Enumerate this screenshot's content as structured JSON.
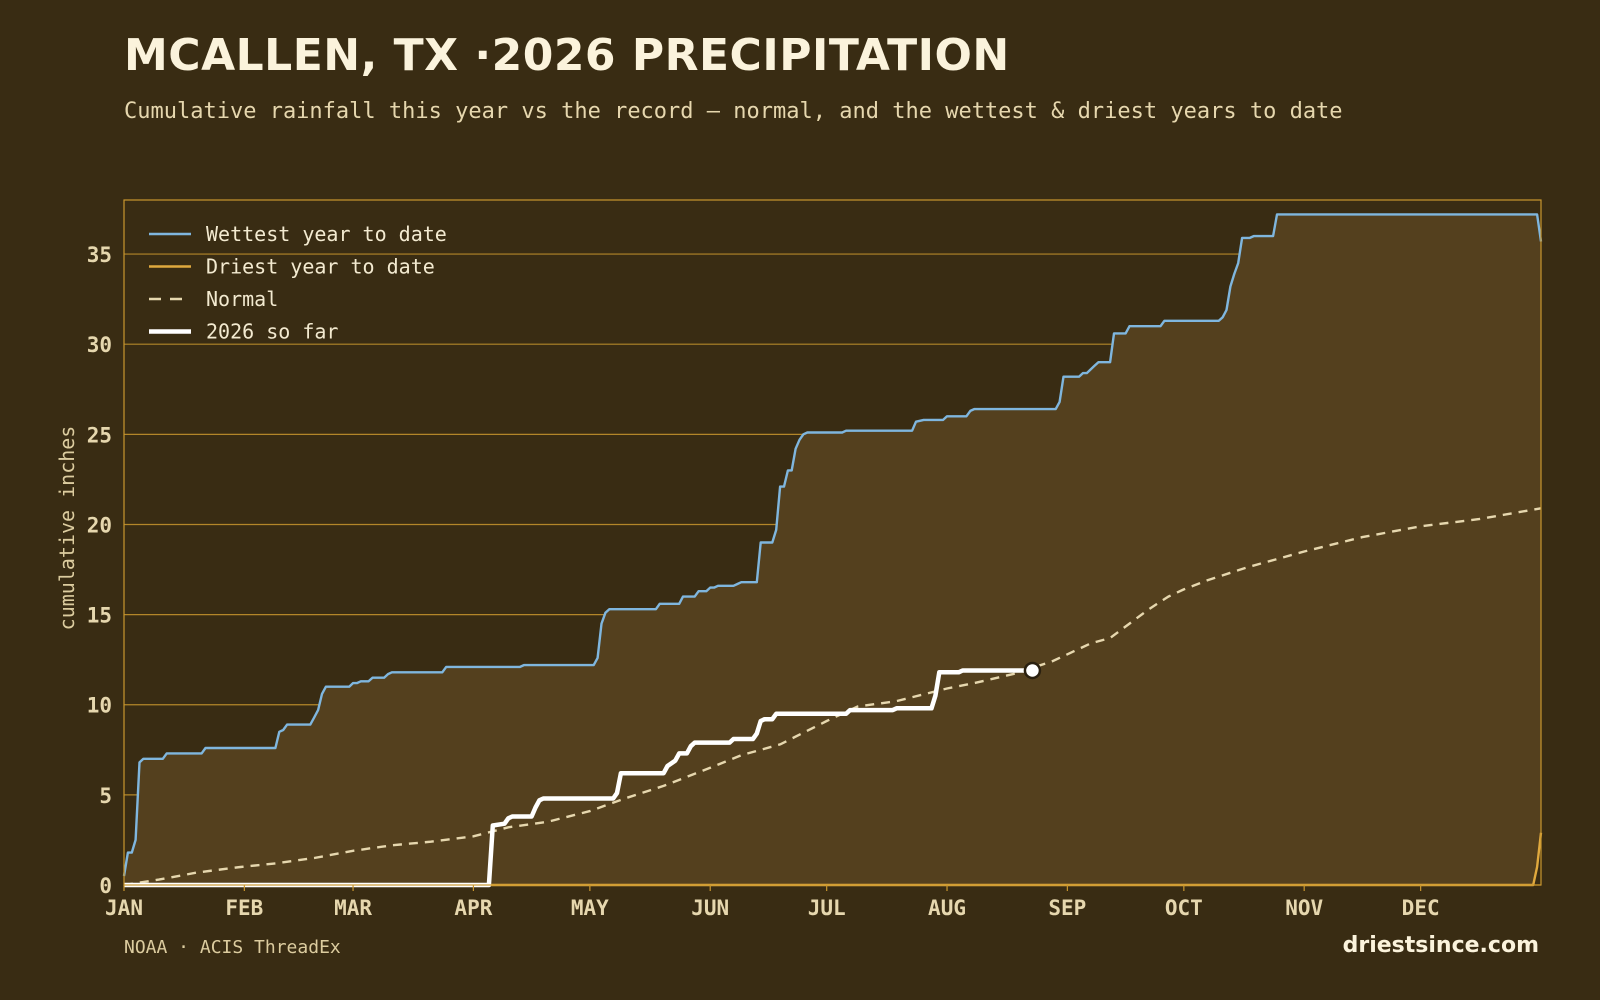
{
  "header": {
    "title": "MCALLEN, TX ·2026 PRECIPITATION",
    "subtitle": "Cumulative rainfall this year vs the record — normal, and the wettest & driest years to date"
  },
  "footer": {
    "source": "NOAA · ACIS ThreadEx",
    "brand": "driestsince.com"
  },
  "colors": {
    "background": "#392c13",
    "fill": "#54401e",
    "grid": "#c9962e",
    "wettest": "#7fb6de",
    "driest": "#e0a93e",
    "normal": "#e6d7ae",
    "current": "#ffffff"
  },
  "chart_data": {
    "type": "line",
    "xlabel": "",
    "ylabel": "cumulative inches",
    "ylim": [
      0,
      38
    ],
    "yticks": [
      0,
      5,
      10,
      15,
      20,
      25,
      30,
      35
    ],
    "xlim": [
      1,
      366
    ],
    "month_labels": [
      "JAN",
      "FEB",
      "MAR",
      "APR",
      "MAY",
      "JUN",
      "JUL",
      "AUG",
      "SEP",
      "OCT",
      "NOV",
      "DEC"
    ],
    "month_days": [
      1,
      32,
      60,
      91,
      121,
      152,
      182,
      213,
      244,
      274,
      305,
      335
    ],
    "grid": "horizontal",
    "legend": "top-left",
    "series": [
      {
        "name": "Wettest year to date",
        "style": "solid",
        "points": [
          [
            1,
            0.5
          ],
          [
            2,
            1.8
          ],
          [
            3,
            1.8
          ],
          [
            4,
            2.5
          ],
          [
            5,
            6.8
          ],
          [
            6,
            7.0
          ],
          [
            11,
            7.0
          ],
          [
            12,
            7.3
          ],
          [
            21,
            7.3
          ],
          [
            22,
            7.6
          ],
          [
            40,
            7.6
          ],
          [
            41,
            8.5
          ],
          [
            42,
            8.6
          ],
          [
            43,
            8.9
          ],
          [
            49,
            8.9
          ],
          [
            50,
            9.3
          ],
          [
            51,
            9.7
          ],
          [
            52,
            10.6
          ],
          [
            53,
            11.0
          ],
          [
            59,
            11.0
          ],
          [
            60,
            11.2
          ],
          [
            61,
            11.2
          ],
          [
            62,
            11.3
          ],
          [
            64,
            11.3
          ],
          [
            65,
            11.5
          ],
          [
            68,
            11.5
          ],
          [
            69,
            11.7
          ],
          [
            70,
            11.8
          ],
          [
            83,
            11.8
          ],
          [
            84,
            12.1
          ],
          [
            103,
            12.1
          ],
          [
            104,
            12.2
          ],
          [
            122,
            12.2
          ],
          [
            123,
            12.6
          ],
          [
            124,
            14.5
          ],
          [
            125,
            15.1
          ],
          [
            126,
            15.3
          ],
          [
            138,
            15.3
          ],
          [
            139,
            15.6
          ],
          [
            144,
            15.6
          ],
          [
            145,
            16.0
          ],
          [
            148,
            16.0
          ],
          [
            149,
            16.3
          ],
          [
            151,
            16.3
          ],
          [
            152,
            16.5
          ],
          [
            153,
            16.5
          ],
          [
            154,
            16.6
          ],
          [
            158,
            16.6
          ],
          [
            159,
            16.7
          ],
          [
            160,
            16.8
          ],
          [
            164,
            16.8
          ],
          [
            165,
            19.0
          ],
          [
            168,
            19.0
          ],
          [
            169,
            19.7
          ],
          [
            170,
            22.1
          ],
          [
            171,
            22.1
          ],
          [
            172,
            23.0
          ],
          [
            173,
            23.0
          ],
          [
            174,
            24.2
          ],
          [
            175,
            24.7
          ],
          [
            176,
            25.0
          ],
          [
            177,
            25.1
          ],
          [
            186,
            25.1
          ],
          [
            187,
            25.2
          ],
          [
            204,
            25.2
          ],
          [
            205,
            25.7
          ],
          [
            207,
            25.8
          ],
          [
            212,
            25.8
          ],
          [
            213,
            26.0
          ],
          [
            218,
            26.0
          ],
          [
            219,
            26.3
          ],
          [
            220,
            26.4
          ],
          [
            241,
            26.4
          ],
          [
            242,
            26.8
          ],
          [
            243,
            28.2
          ],
          [
            247,
            28.2
          ],
          [
            248,
            28.4
          ],
          [
            249,
            28.4
          ],
          [
            250,
            28.6
          ],
          [
            251,
            28.8
          ],
          [
            252,
            29.0
          ],
          [
            255,
            29.0
          ],
          [
            256,
            30.6
          ],
          [
            259,
            30.6
          ],
          [
            260,
            31.0
          ],
          [
            268,
            31.0
          ],
          [
            269,
            31.3
          ],
          [
            283,
            31.3
          ],
          [
            284,
            31.5
          ],
          [
            285,
            31.9
          ],
          [
            286,
            33.2
          ],
          [
            287,
            33.9
          ],
          [
            288,
            34.5
          ],
          [
            289,
            35.9
          ],
          [
            291,
            35.9
          ],
          [
            292,
            36.0
          ],
          [
            297,
            36.0
          ],
          [
            298,
            37.2
          ],
          [
            365,
            37.2
          ],
          [
            366,
            35.7
          ]
        ]
      },
      {
        "name": "Driest year to date",
        "style": "solid",
        "points": [
          [
            1,
            0
          ],
          [
            364,
            0
          ],
          [
            365,
            1.0
          ],
          [
            366,
            2.9
          ]
        ]
      },
      {
        "name": "Normal",
        "style": "dashed",
        "points": [
          [
            1,
            0
          ],
          [
            10,
            0.3
          ],
          [
            20,
            0.7
          ],
          [
            31,
            1.0
          ],
          [
            40,
            1.2
          ],
          [
            50,
            1.5
          ],
          [
            60,
            1.9
          ],
          [
            70,
            2.2
          ],
          [
            80,
            2.4
          ],
          [
            91,
            2.7
          ],
          [
            100,
            3.2
          ],
          [
            110,
            3.5
          ],
          [
            121,
            4.1
          ],
          [
            130,
            4.8
          ],
          [
            140,
            5.5
          ],
          [
            152,
            6.5
          ],
          [
            160,
            7.2
          ],
          [
            170,
            7.8
          ],
          [
            182,
            9.1
          ],
          [
            190,
            9.9
          ],
          [
            200,
            10.2
          ],
          [
            213,
            10.9
          ],
          [
            220,
            11.2
          ],
          [
            230,
            11.7
          ],
          [
            240,
            12.4
          ],
          [
            244,
            12.8
          ],
          [
            250,
            13.4
          ],
          [
            255,
            13.7
          ],
          [
            260,
            14.5
          ],
          [
            265,
            15.3
          ],
          [
            270,
            16.0
          ],
          [
            274,
            16.4
          ],
          [
            280,
            16.9
          ],
          [
            290,
            17.6
          ],
          [
            305,
            18.5
          ],
          [
            320,
            19.3
          ],
          [
            335,
            19.9
          ],
          [
            350,
            20.3
          ],
          [
            366,
            20.9
          ]
        ]
      },
      {
        "name": "2026 so far",
        "style": "thick",
        "points": [
          [
            1,
            0
          ],
          [
            95,
            0
          ],
          [
            96,
            3.3
          ],
          [
            99,
            3.4
          ],
          [
            100,
            3.7
          ],
          [
            101,
            3.8
          ],
          [
            106,
            3.8
          ],
          [
            107,
            4.3
          ],
          [
            108,
            4.7
          ],
          [
            109,
            4.8
          ],
          [
            127,
            4.8
          ],
          [
            128,
            5.1
          ],
          [
            129,
            6.2
          ],
          [
            140,
            6.2
          ],
          [
            141,
            6.6
          ],
          [
            143,
            6.9
          ],
          [
            144,
            7.3
          ],
          [
            146,
            7.3
          ],
          [
            147,
            7.7
          ],
          [
            148,
            7.9
          ],
          [
            157,
            7.9
          ],
          [
            158,
            8.1
          ],
          [
            163,
            8.1
          ],
          [
            164,
            8.4
          ],
          [
            165,
            9.1
          ],
          [
            166,
            9.2
          ],
          [
            168,
            9.2
          ],
          [
            169,
            9.5
          ],
          [
            187,
            9.5
          ],
          [
            188,
            9.7
          ],
          [
            199,
            9.7
          ],
          [
            200,
            9.8
          ],
          [
            209,
            9.8
          ],
          [
            210,
            10.5
          ],
          [
            211,
            11.8
          ],
          [
            216,
            11.8
          ],
          [
            217,
            11.9
          ],
          [
            235,
            11.9
          ]
        ],
        "current": {
          "day": 235,
          "value": 11.9
        }
      }
    ]
  }
}
